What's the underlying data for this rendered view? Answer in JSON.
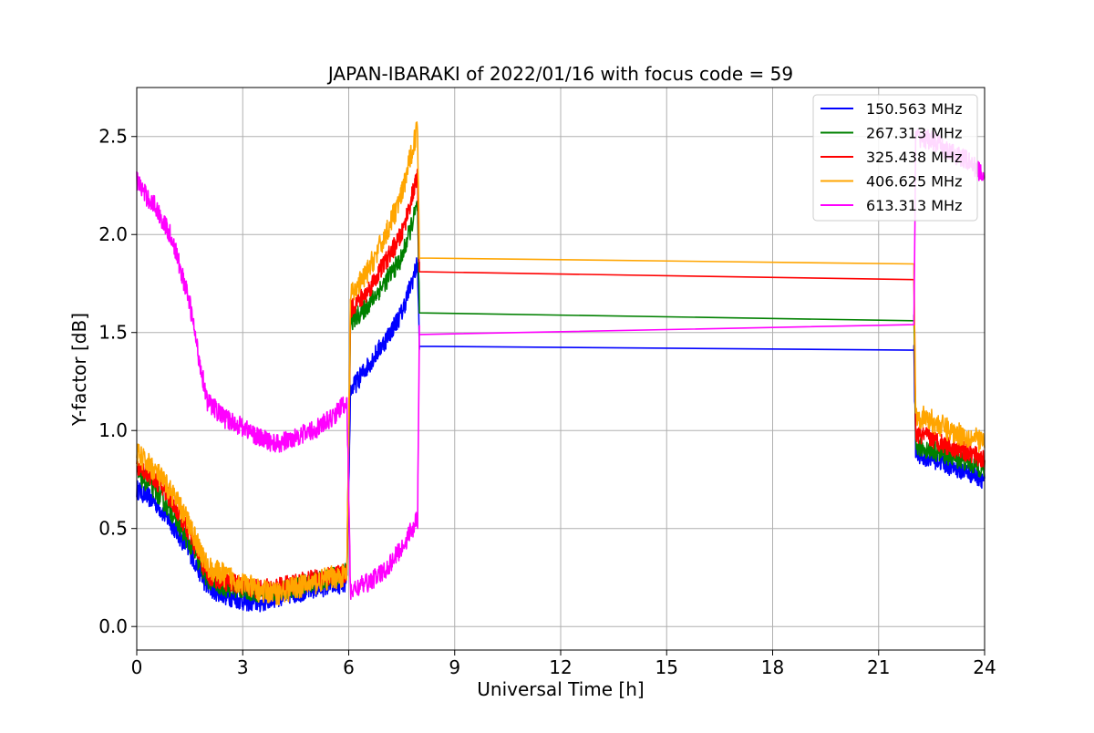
{
  "chart_data": {
    "type": "line",
    "title": "JAPAN-IBARAKI of 2022/01/16 with focus code = 59",
    "xlabel": "Universal Time [h]",
    "ylabel": "Y-factor [dB]",
    "xlim": [
      0,
      24
    ],
    "ylim": [
      -0.12,
      2.75
    ],
    "xticks": [
      0,
      3,
      6,
      9,
      12,
      15,
      18,
      21,
      24
    ],
    "yticks": [
      0.0,
      0.5,
      1.0,
      1.5,
      2.0,
      2.5
    ],
    "xtick_labels": [
      "0",
      "3",
      "6",
      "9",
      "12",
      "15",
      "18",
      "21",
      "24"
    ],
    "ytick_labels": [
      "0.0",
      "0.5",
      "1.0",
      "1.5",
      "2.0",
      "2.5"
    ],
    "grid": true,
    "legend_position": "top-right",
    "series": [
      {
        "name": "150.563 MHz",
        "color": "#0000ff",
        "x": [
          0,
          0.5,
          1,
          1.5,
          2,
          2.5,
          3,
          3.5,
          4,
          4.5,
          5,
          5.5,
          5.95,
          6.05,
          6.5,
          7,
          7.5,
          7.95,
          8.0,
          22.0,
          22.05,
          22.5,
          23,
          23.5,
          24
        ],
        "y": [
          0.7,
          0.64,
          0.52,
          0.38,
          0.2,
          0.16,
          0.13,
          0.12,
          0.15,
          0.17,
          0.19,
          0.21,
          0.22,
          1.2,
          1.32,
          1.45,
          1.6,
          1.85,
          1.43,
          1.41,
          0.88,
          0.86,
          0.82,
          0.79,
          0.75
        ],
        "noise": 0.05
      },
      {
        "name": "267.313 MHz",
        "color": "#008000",
        "x": [
          0,
          0.5,
          1,
          1.5,
          2,
          2.5,
          3,
          3.5,
          4,
          4.5,
          5,
          5.5,
          5.95,
          6.05,
          6.5,
          7,
          7.5,
          7.95,
          8.0,
          22.0,
          22.05,
          22.5,
          23,
          23.5,
          24
        ],
        "y": [
          0.78,
          0.7,
          0.58,
          0.42,
          0.24,
          0.2,
          0.19,
          0.17,
          0.18,
          0.2,
          0.23,
          0.25,
          0.28,
          1.55,
          1.63,
          1.75,
          1.88,
          2.15,
          1.6,
          1.56,
          0.92,
          0.9,
          0.87,
          0.84,
          0.8
        ],
        "noise": 0.05
      },
      {
        "name": "325.438 MHz",
        "color": "#ff0000",
        "x": [
          0,
          0.5,
          1,
          1.5,
          2,
          2.5,
          3,
          3.5,
          4,
          4.5,
          5,
          5.5,
          5.95,
          6.05,
          6.5,
          7,
          7.5,
          7.95,
          8.0,
          22.0,
          22.05,
          22.5,
          23,
          23.5,
          24
        ],
        "y": [
          0.82,
          0.76,
          0.64,
          0.47,
          0.26,
          0.23,
          0.21,
          0.19,
          0.2,
          0.22,
          0.24,
          0.26,
          0.27,
          1.62,
          1.7,
          1.85,
          2.0,
          2.3,
          1.81,
          1.77,
          0.98,
          0.96,
          0.92,
          0.89,
          0.85
        ],
        "noise": 0.05
      },
      {
        "name": "406.625 MHz",
        "color": "#ffa500",
        "x": [
          0,
          0.5,
          1,
          1.5,
          2,
          2.5,
          3,
          3.5,
          4,
          4.5,
          5,
          5.5,
          5.95,
          6.05,
          6.5,
          7,
          7.5,
          7.95,
          8.0,
          22.0,
          22.05,
          22.5,
          23,
          23.5,
          24
        ],
        "y": [
          0.88,
          0.8,
          0.68,
          0.52,
          0.3,
          0.26,
          0.22,
          0.18,
          0.17,
          0.2,
          0.22,
          0.25,
          0.26,
          1.68,
          1.8,
          1.98,
          2.2,
          2.55,
          1.88,
          1.85,
          1.08,
          1.05,
          1.0,
          0.97,
          0.94
        ],
        "noise": 0.06
      },
      {
        "name": "613.313 MHz",
        "color": "#ff00ff",
        "x": [
          0,
          0.25,
          0.5,
          1,
          1.5,
          1.75,
          2,
          2.5,
          3,
          3.5,
          4,
          4.5,
          5,
          5.5,
          5.95,
          6.05,
          6.5,
          7,
          7.5,
          7.95,
          8.0,
          22.0,
          22.05,
          22.5,
          23,
          23.5,
          24
        ],
        "y": [
          2.28,
          2.2,
          2.15,
          1.98,
          1.65,
          1.38,
          1.15,
          1.06,
          1.02,
          0.96,
          0.93,
          0.97,
          1.0,
          1.06,
          1.15,
          0.18,
          0.22,
          0.28,
          0.4,
          0.55,
          1.49,
          1.54,
          2.5,
          2.48,
          2.42,
          2.38,
          2.3
        ],
        "noise": 0.05
      }
    ]
  }
}
